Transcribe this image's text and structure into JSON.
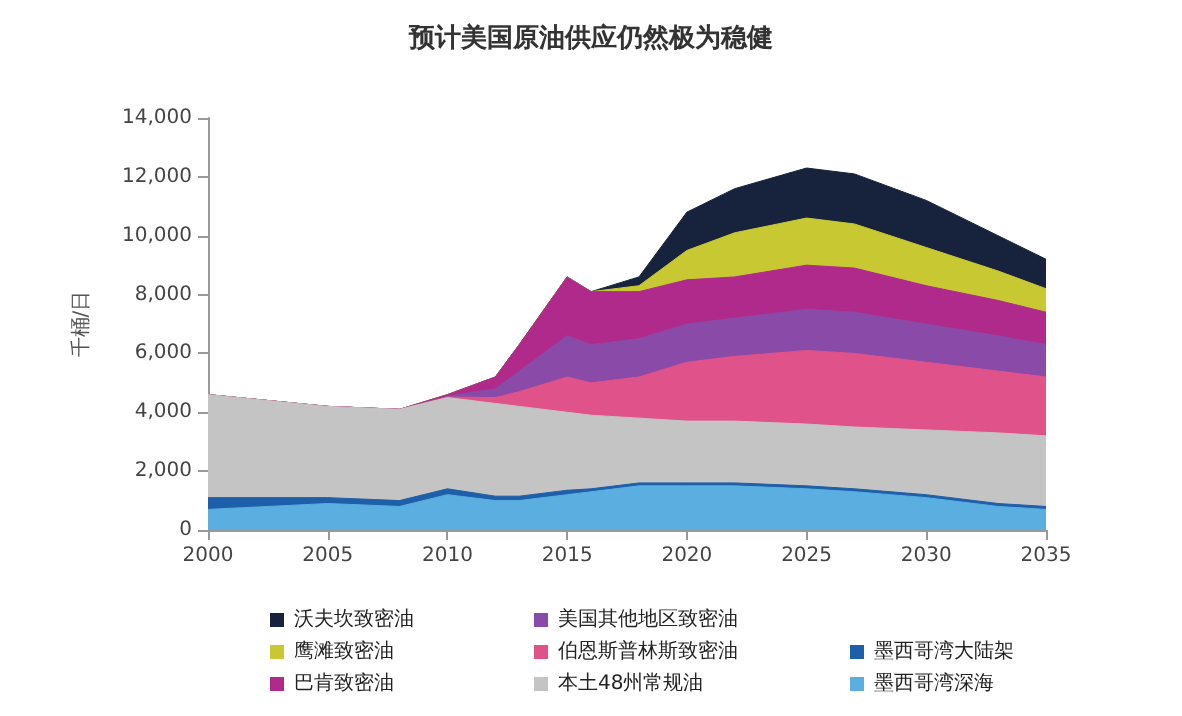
{
  "chart_data": {
    "type": "area",
    "stacked": true,
    "title": "预计美国原油供应仍然极为稳健",
    "ylabel": "千桶/日",
    "x": [
      2000,
      2005,
      2008,
      2010,
      2012,
      2013,
      2015,
      2016,
      2018,
      2020,
      2022,
      2025,
      2027,
      2030,
      2033,
      2035
    ],
    "xlim": [
      2000,
      2035
    ],
    "xticks": [
      2000,
      2005,
      2010,
      2015,
      2020,
      2025,
      2030,
      2035
    ],
    "ylim": [
      0,
      14000
    ],
    "yticks": [
      {
        "value": 0,
        "label": "0"
      },
      {
        "value": 2000,
        "label": "2,000"
      },
      {
        "value": 4000,
        "label": "4,000"
      },
      {
        "value": 6000,
        "label": "6,000"
      },
      {
        "value": 8000,
        "label": "8,000"
      },
      {
        "value": 10000,
        "label": "10,000"
      },
      {
        "value": 12000,
        "label": "12,000"
      },
      {
        "value": 14000,
        "label": "14,000"
      }
    ],
    "grid": false,
    "legend": "bottom",
    "marker": "none",
    "series": [
      {
        "name": "墨西哥湾深海",
        "color": "#5aaee0",
        "values": [
          700,
          900,
          800,
          1200,
          1000,
          1000,
          1200,
          1300,
          1500,
          1500,
          1500,
          1400,
          1300,
          1100,
          800,
          700
        ]
      },
      {
        "name": "墨西哥湾大陆架",
        "color": "#1d5fa8",
        "values": [
          400,
          200,
          200,
          200,
          150,
          150,
          150,
          100,
          100,
          100,
          100,
          100,
          100,
          100,
          100,
          100
        ]
      },
      {
        "name": "本土48州常规油",
        "color": "#c4c4c4",
        "values": [
          3500,
          3100,
          3100,
          3100,
          3150,
          3050,
          2650,
          2500,
          2200,
          2100,
          2100,
          2100,
          2100,
          2200,
          2400,
          2400
        ]
      },
      {
        "name": "伯恩斯普林斯致密油",
        "color": "#e0528a",
        "values": [
          0,
          0,
          0,
          20,
          200,
          500,
          1200,
          1100,
          1400,
          2000,
          2200,
          2500,
          2500,
          2300,
          2100,
          2000
        ]
      },
      {
        "name": "美国其他地区致密油",
        "color": "#8a4aa8",
        "values": [
          0,
          0,
          0,
          30,
          300,
          700,
          1400,
          1300,
          1300,
          1300,
          1300,
          1400,
          1400,
          1300,
          1200,
          1100
        ]
      },
      {
        "name": "巴肯致密油",
        "color": "#b02a8c",
        "values": [
          0,
          0,
          0,
          50,
          400,
          900,
          2000,
          1800,
          1600,
          1500,
          1400,
          1500,
          1500,
          1300,
          1200,
          1100
        ]
      },
      {
        "name": "鹰滩致密油",
        "color": "#c8c832",
        "values": [
          0,
          0,
          0,
          0,
          0,
          0,
          0,
          0,
          200,
          1000,
          1500,
          1600,
          1500,
          1300,
          1000,
          800
        ]
      },
      {
        "name": "沃夫坎致密油",
        "color": "#17233d",
        "values": [
          0,
          0,
          0,
          0,
          0,
          0,
          0,
          0,
          300,
          1300,
          1500,
          1700,
          1700,
          1600,
          1200,
          1000
        ]
      }
    ]
  }
}
